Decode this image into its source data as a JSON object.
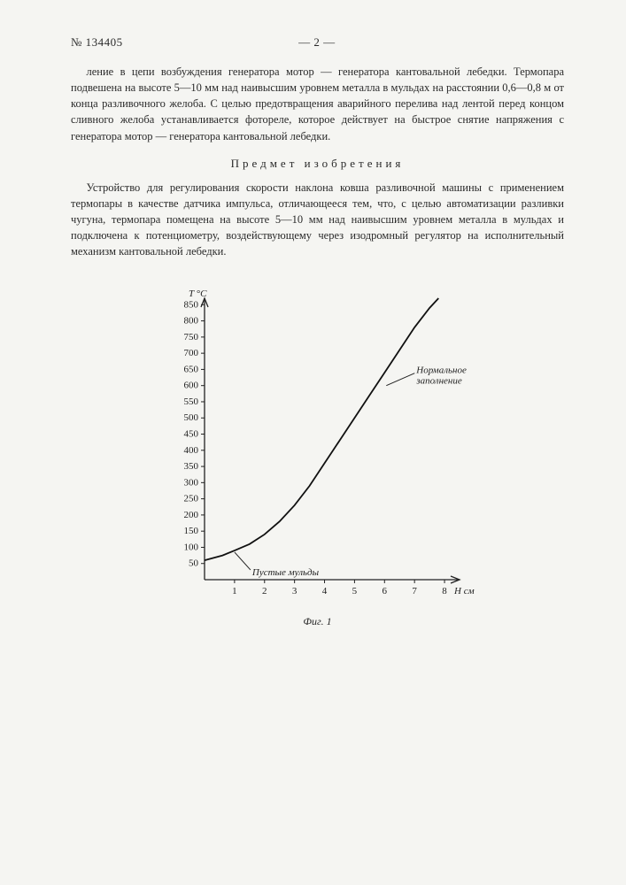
{
  "header": {
    "doc_number": "№ 134405",
    "page_indicator": "— 2 —"
  },
  "paragraphs": {
    "p1": "ление в цепи возбуждения генератора мотор — генератора кантовальной лебедки. Термопара подвешена на высоте 5—10 мм над наивысшим уровнем металла в мульдах на расстоянии 0,6—0,8 м от конца разливочного желоба. С целью предотвращения аварийного перелива над лентой перед концом сливного желоба устанавливается фотореле, которое действует на быстрое снятие напряжения с генератора мотор — генератора кантовальной лебедки.",
    "section_title": "Предмет изобретения",
    "p2": "Устройство для регулирования скорости наклона ковша разливочной машины с применением термопары в качестве датчика импульса, отличающееся тем, что, с целью автоматизации разливки чугуна, термопара помещена на высоте 5—10 мм над наивысшим уровнем металла в мульдах и подключена к потенциометру, воздействующему через изодромный регулятор на исполнительный механизм кантовальной лебедки."
  },
  "chart": {
    "type": "line",
    "x_label": "Н см",
    "y_label": "T °C",
    "x_ticks": [
      1,
      2,
      3,
      4,
      5,
      6,
      7,
      8
    ],
    "y_ticks": [
      50,
      100,
      150,
      200,
      250,
      300,
      350,
      400,
      450,
      500,
      550,
      600,
      650,
      700,
      750,
      800,
      850
    ],
    "xlim": [
      0,
      8.5
    ],
    "ylim": [
      0,
      870
    ],
    "curve_points": [
      [
        0,
        60
      ],
      [
        0.6,
        75
      ],
      [
        1,
        90
      ],
      [
        1.5,
        110
      ],
      [
        2,
        140
      ],
      [
        2.5,
        180
      ],
      [
        3,
        230
      ],
      [
        3.5,
        290
      ],
      [
        4,
        360
      ],
      [
        4.5,
        430
      ],
      [
        5,
        500
      ],
      [
        5.5,
        570
      ],
      [
        6,
        640
      ],
      [
        6.5,
        710
      ],
      [
        7,
        780
      ],
      [
        7.5,
        840
      ],
      [
        7.8,
        870
      ]
    ],
    "annotations": {
      "normal_fill": {
        "label": "Нормальное\nзаполнение",
        "target_x": 6,
        "target_y": 600
      },
      "empty_moulds": {
        "label": "Пустые мульды",
        "target_x": 1.0,
        "target_y": 85
      }
    },
    "style": {
      "axis_color": "#222222",
      "curve_color": "#111111",
      "curve_width": 1.8,
      "background": "#f5f5f2",
      "tick_fontsize": 11,
      "label_fontsize": 11
    },
    "caption": "Фиг. 1"
  }
}
